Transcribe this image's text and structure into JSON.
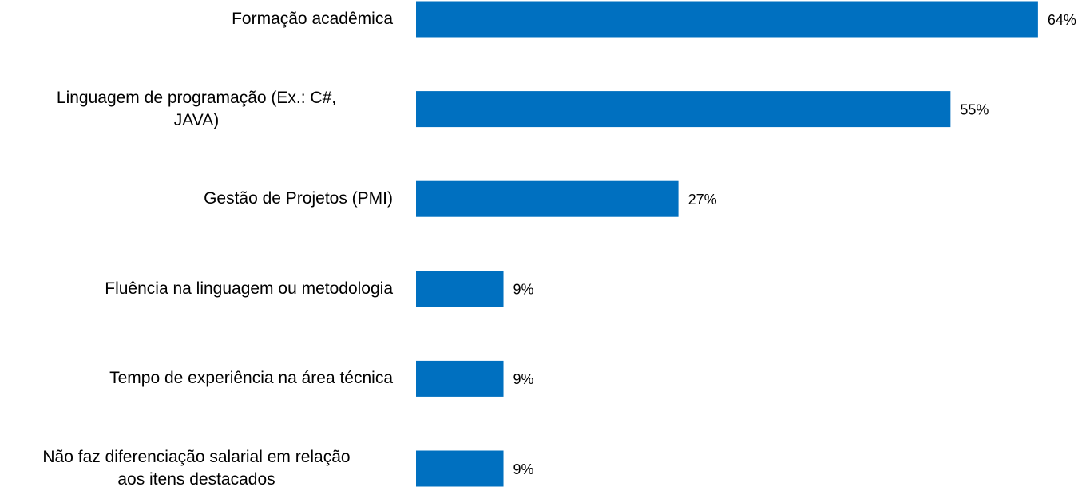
{
  "chart_data": {
    "type": "bar",
    "orientation": "horizontal",
    "categories": [
      "Formação acadêmica",
      "Linguagem de programação (Ex.: C#,\nJAVA)",
      "Gestão de Projetos (PMI)",
      "Fluência na linguagem ou metodologia",
      "Tempo de experiência na área técnica",
      "Não faz diferenciação salarial em relação\naos itens destacados"
    ],
    "values": [
      64,
      55,
      27,
      9,
      9,
      9
    ],
    "value_labels": [
      "64%",
      "55%",
      "27%",
      "9%",
      "9%",
      "9%"
    ],
    "color": "#0070c0"
  }
}
